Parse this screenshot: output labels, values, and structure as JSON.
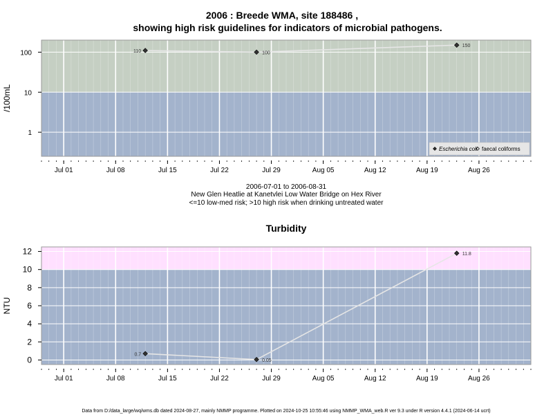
{
  "chart_data": [
    {
      "type": "line",
      "title": "2006 : Breede WMA, site 188486 ,",
      "subtitle": "showing high risk guidelines for indicators of microbial pathogens.",
      "ylabel": "/100mL",
      "xlabel": "",
      "yscale": "log",
      "ylim": [
        0.25,
        200
      ],
      "y_ticks": [
        1,
        10,
        100
      ],
      "y_tick_labels": [
        "1",
        "10",
        "100"
      ],
      "x_range": [
        "2006-06-28",
        "2006-09-02"
      ],
      "x_ticks": [
        "2006-07-01",
        "2006-07-08",
        "2006-07-15",
        "2006-07-22",
        "2006-07-29",
        "2006-08-05",
        "2006-08-12",
        "2006-08-19",
        "2006-08-26"
      ],
      "x_tick_labels": [
        "Jul 01",
        "Jul 08",
        "Jul 15",
        "Jul 22",
        "Jul 29",
        "Aug 05",
        "Aug 12",
        "Aug 19",
        "Aug 26"
      ],
      "grid": true,
      "bands": [
        {
          "from": 0.25,
          "to": 10,
          "color": "#a3b3cc",
          "meaning": "low-med risk"
        },
        {
          "from": 10,
          "to": 200,
          "color": "#c5cfc3",
          "meaning": "high risk"
        }
      ],
      "series": [
        {
          "name": "Escherichia coli",
          "marker": "diamond-filled",
          "color": "#333333",
          "line_color": "#e6e6e6",
          "x": [
            "2006-07-12",
            "2006-07-27",
            "2006-08-23"
          ],
          "y": [
            110,
            100,
            150
          ],
          "labels": [
            "110",
            "100",
            "150"
          ]
        },
        {
          "name": "faecal coliforms",
          "marker": "diamond-open",
          "color": "#333333",
          "x": [],
          "y": []
        }
      ],
      "legend_position": "bottom-right",
      "caption_lines": [
        "2006-07-01 to 2006-08-31",
        "New Glen Heatlie at Kanetvlei Low Water Bridge on Hex River",
        "<=10 low-med risk; >10 high risk when drinking untreated water"
      ]
    },
    {
      "type": "line",
      "title": "Turbidity",
      "ylabel": "NTU",
      "xlabel": "",
      "ylim": [
        -0.5,
        12.5
      ],
      "y_ticks": [
        0,
        2,
        4,
        6,
        8,
        10,
        12
      ],
      "y_tick_labels": [
        "0",
        "2",
        "4",
        "6",
        "8",
        "10",
        "12"
      ],
      "x_range": [
        "2006-06-28",
        "2006-09-02"
      ],
      "x_ticks": [
        "2006-07-01",
        "2006-07-08",
        "2006-07-15",
        "2006-07-22",
        "2006-07-29",
        "2006-08-05",
        "2006-08-12",
        "2006-08-19",
        "2006-08-26"
      ],
      "x_tick_labels": [
        "Jul 01",
        "Jul 08",
        "Jul 15",
        "Jul 22",
        "Jul 29",
        "Aug 05",
        "Aug 12",
        "Aug 19",
        "Aug 26"
      ],
      "grid": true,
      "bands": [
        {
          "from": -0.5,
          "to": 10,
          "color": "#a3b3cc"
        },
        {
          "from": 10,
          "to": 12.5,
          "color": "#ffe0ff"
        }
      ],
      "series": [
        {
          "marker": "diamond-filled",
          "color": "#333333",
          "line_color": "#e6e6e6",
          "x": [
            "2006-07-12",
            "2006-07-27",
            "2006-08-23"
          ],
          "y": [
            0.7,
            0.05,
            11.8
          ],
          "labels": [
            "0.7",
            "0.05",
            "11.8"
          ]
        }
      ]
    }
  ],
  "footer": "Data from D:/data_large/wq/wms.db dated 2024-08-27, mainly NMMP programme. Plotted on 2024-10-25 10:55:46 using NMMP_WMA_web.R ver 9.3 under R version 4.4.1 (2024-06-14 ucrt)"
}
